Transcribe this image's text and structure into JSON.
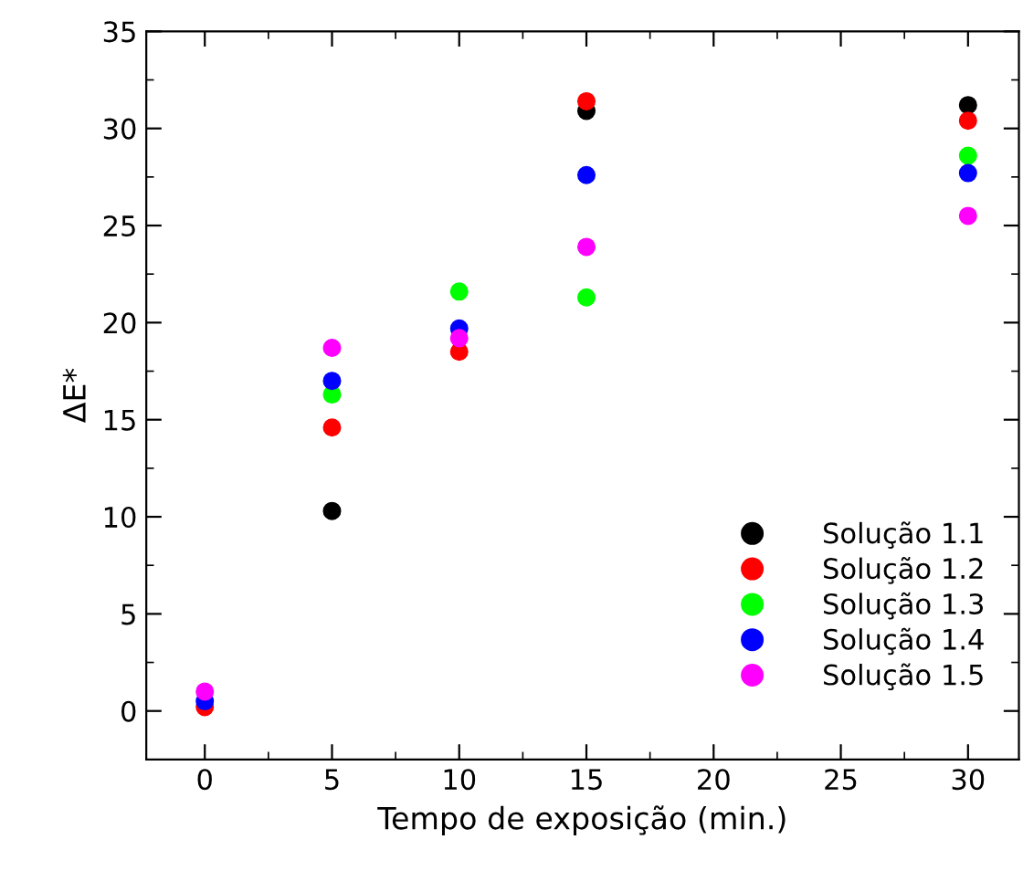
{
  "chart_data": {
    "type": "scatter",
    "xlabel": "Tempo de exposição (min.)",
    "ylabel": "ΔE*",
    "x": [
      0,
      5,
      10,
      15,
      30
    ],
    "series": [
      {
        "name": "Solução 1.1",
        "color": "#000000",
        "values": [
          null,
          10.3,
          null,
          30.9,
          31.2
        ]
      },
      {
        "name": "Solução 1.2",
        "color": "#ff0000",
        "values": [
          0.2,
          14.6,
          18.5,
          31.4,
          30.4
        ]
      },
      {
        "name": "Solução 1.3",
        "color": "#00ff00",
        "values": [
          null,
          16.3,
          21.6,
          21.3,
          28.6
        ]
      },
      {
        "name": "Solução 1.4",
        "color": "#0000ff",
        "values": [
          0.5,
          17.0,
          19.7,
          27.6,
          27.7
        ]
      },
      {
        "name": "Solução 1.5",
        "color": "#ff00ff",
        "values": [
          1.0,
          18.7,
          19.2,
          23.9,
          25.5
        ]
      }
    ],
    "xlim": [
      -2.3,
      32
    ],
    "ylim": [
      -2.5,
      35
    ],
    "xticks": [
      0,
      5,
      10,
      15,
      20,
      25,
      30
    ],
    "yticks": [
      0,
      5,
      10,
      15,
      20,
      25,
      30,
      35
    ],
    "marker": "circle",
    "legend": "bottom right",
    "grid": false
  }
}
